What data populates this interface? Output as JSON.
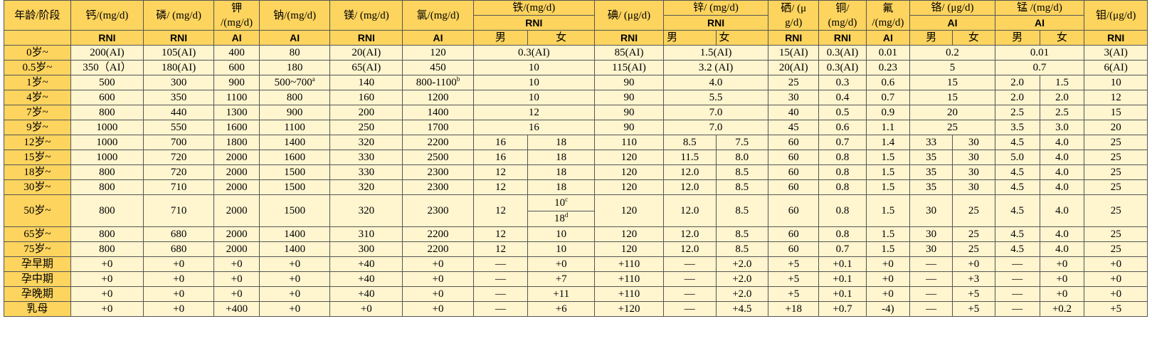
{
  "header": {
    "age": "年龄/阶段",
    "ca": "钙/(mg/d)",
    "p": "磷/ (mg/d)",
    "k_1": "钾",
    "k_2": "/(mg/d)",
    "na": "钠/(mg/d)",
    "mg": "镁/ (mg/d)",
    "cl": "氯/(mg/d)",
    "fe": "铁/(mg/d)",
    "fe_type": "RNI",
    "fe_m": "男",
    "fe_f": "女",
    "i": "碘/ (μg/d)",
    "zn": "锌/ (mg/d)",
    "zn_type": "RNI",
    "zn_m": "男",
    "zn_f": "女",
    "se_1": "硒/ (μ",
    "se_2": "g/d)",
    "cu_1": "铜/",
    "cu_2": "(mg/d)",
    "f_1": "氟",
    "f_2": "/(mg/d)",
    "cr": "铬/ (μg/d)",
    "cr_type": "AI",
    "cr_m": "男",
    "cr_f": "女",
    "mn": "锰 /(mg/d)",
    "mn_type": "AI",
    "mn_m": "男",
    "mn_f": "女",
    "mo": "钼/(μg/d)",
    "t_ca": "RNI",
    "t_p": "RNI",
    "t_k": "AI",
    "t_na": "AI",
    "t_mg": "RNI",
    "t_cl": "AI",
    "t_i": "RNI",
    "t_se": "RNI",
    "t_cu": "RNI",
    "t_f": "AI",
    "t_mo": "RNI"
  },
  "rows": {
    "r0": {
      "age": "0岁~",
      "ca": "200(AI)",
      "p": "105(AI)",
      "k": "400",
      "na": "80",
      "mg": "20(AI)",
      "cl": "120",
      "fe": "0.3(AI)",
      "i": "85(AI)",
      "zn": "1.5(AI)",
      "se": "15(AI)",
      "cu": "0.3(AI)",
      "f": "0.01",
      "cr": "0.2",
      "mn": "0.01",
      "mo": "3(AI)"
    },
    "r1": {
      "age": "0.5岁~",
      "ca": "350（AI）",
      "p": "180(AI)",
      "k": "600",
      "na": "180",
      "mg": "65(AI)",
      "cl": "450",
      "fe": "10",
      "i": "115(AI)",
      "zn": "3.2 (AI)",
      "se": "20(AI)",
      "cu": "0.3(AI)",
      "f": "0.23",
      "cr": "5",
      "mn": "0.7",
      "mo": "6(AI)"
    },
    "r2": {
      "age": "1岁~",
      "ca": "500",
      "p": "300",
      "k": "900",
      "na": "500~700",
      "na_sup": "a",
      "mg": "140",
      "cl": "800-1100",
      "cl_sup": "b",
      "fe": "10",
      "i": "90",
      "zn": "4.0",
      "se": "25",
      "cu": "0.3",
      "f": "0.6",
      "cr": "15",
      "mn_m": "2.0",
      "mn_f": "1.5",
      "mo": "10"
    },
    "r3": {
      "age": "4岁~",
      "ca": "600",
      "p": "350",
      "k": "1100",
      "na": "800",
      "mg": "160",
      "cl": "1200",
      "fe": "10",
      "i": "90",
      "zn": "5.5",
      "se": "30",
      "cu": "0.4",
      "f": "0.7",
      "cr": "15",
      "mn_m": "2.0",
      "mn_f": "2.0",
      "mo": "12"
    },
    "r4": {
      "age": "7岁~",
      "ca": "800",
      "p": "440",
      "k": "1300",
      "na": "900",
      "mg": "200",
      "cl": "1400",
      "fe": "12",
      "i": "90",
      "zn": "7.0",
      "se": "40",
      "cu": "0.5",
      "f": "0.9",
      "cr": "20",
      "mn_m": "2.5",
      "mn_f": "2.5",
      "mo": "15"
    },
    "r5": {
      "age": "9岁~",
      "ca": "1000",
      "p": "550",
      "k": "1600",
      "na": "1100",
      "mg": "250",
      "cl": "1700",
      "fe": "16",
      "i": "90",
      "zn": "7.0",
      "se": "45",
      "cu": "0.6",
      "f": "1.1",
      "cr": "25",
      "mn_m": "3.5",
      "mn_f": "3.0",
      "mo": "20"
    },
    "r6": {
      "age": "12岁~",
      "ca": "1000",
      "p": "700",
      "k": "1800",
      "na": "1400",
      "mg": "320",
      "cl": "2200",
      "fe_m": "16",
      "fe_f": "18",
      "i": "110",
      "zn_m": "8.5",
      "zn_f": "7.5",
      "se": "60",
      "cu": "0.7",
      "f": "1.4",
      "cr_m": "33",
      "cr_f": "30",
      "mn_m": "4.5",
      "mn_f": "4.0",
      "mo": "25"
    },
    "r7": {
      "age": "15岁~",
      "ca": "1000",
      "p": "720",
      "k": "2000",
      "na": "1600",
      "mg": "330",
      "cl": "2500",
      "fe_m": "16",
      "fe_f": "18",
      "i": "120",
      "zn_m": "11.5",
      "zn_f": "8.0",
      "se": "60",
      "cu": "0.8",
      "f": "1.5",
      "cr_m": "35",
      "cr_f": "30",
      "mn_m": "5.0",
      "mn_f": "4.0",
      "mo": "25"
    },
    "r8": {
      "age": "18岁~",
      "ca": "800",
      "p": "720",
      "k": "2000",
      "na": "1500",
      "mg": "330",
      "cl": "2300",
      "fe_m": "12",
      "fe_f": "18",
      "i": "120",
      "zn_m": "12.0",
      "zn_f": "8.5",
      "se": "60",
      "cu": "0.8",
      "f": "1.5",
      "cr_m": "35",
      "cr_f": "30",
      "mn_m": "4.5",
      "mn_f": "4.0",
      "mo": "25"
    },
    "r9": {
      "age": "30岁~",
      "ca": "800",
      "p": "710",
      "k": "2000",
      "na": "1500",
      "mg": "320",
      "cl": "2300",
      "fe_m": "12",
      "fe_f": "18",
      "i": "120",
      "zn_m": "12.0",
      "zn_f": "8.5",
      "se": "60",
      "cu": "0.8",
      "f": "1.5",
      "cr_m": "35",
      "cr_f": "30",
      "mn_m": "4.5",
      "mn_f": "4.0",
      "mo": "25"
    },
    "r10": {
      "age": "50岁~",
      "ca": "800",
      "p": "710",
      "k": "2000",
      "na": "1500",
      "mg": "320",
      "cl": "2300",
      "fe_m": "12",
      "fe_f1": "10",
      "fe_f1_sup": "c",
      "fe_f2": "18",
      "fe_f2_sup": "d",
      "i": "120",
      "zn_m": "12.0",
      "zn_f": "8.5",
      "se": "60",
      "cu": "0.8",
      "f": "1.5",
      "cr_m": "30",
      "cr_f": "25",
      "mn_m": "4.5",
      "mn_f": "4.0",
      "mo": "25"
    },
    "r11": {
      "age": "65岁~",
      "ca": "800",
      "p": "680",
      "k": "2000",
      "na": "1400",
      "mg": "310",
      "cl": "2200",
      "fe_m": "12",
      "fe_f": "10",
      "i": "120",
      "zn_m": "12.0",
      "zn_f": "8.5",
      "se": "60",
      "cu": "0.8",
      "f": "1.5",
      "cr_m": "30",
      "cr_f": "25",
      "mn_m": "4.5",
      "mn_f": "4.0",
      "mo": "25"
    },
    "r12": {
      "age": "75岁~",
      "ca": "800",
      "p": "680",
      "k": "2000",
      "na": "1400",
      "mg": "300",
      "cl": "2200",
      "fe_m": "12",
      "fe_f": "10",
      "i": "120",
      "zn_m": "12.0",
      "zn_f": "8.5",
      "se": "60",
      "cu": "0.7",
      "f": "1.5",
      "cr_m": "30",
      "cr_f": "25",
      "mn_m": "4.5",
      "mn_f": "4.0",
      "mo": "25"
    },
    "r13": {
      "age": "孕早期",
      "ca": "+0",
      "p": "+0",
      "k": "+0",
      "na": "+0",
      "mg": "+40",
      "cl": "+0",
      "fe_m": "—",
      "fe_f": "+0",
      "i": "+110",
      "zn_m": "—",
      "zn_f": "+2.0",
      "se": "+5",
      "cu": "+0.1",
      "f": "+0",
      "cr_m": "—",
      "cr_f": "+0",
      "mn_m": "—",
      "mn_f": "+0",
      "mo": "+0"
    },
    "r14": {
      "age": "孕中期",
      "ca": "+0",
      "p": "+0",
      "k": "+0",
      "na": "+0",
      "mg": "+40",
      "cl": "+0",
      "fe_m": "—",
      "fe_f": "+7",
      "i": "+110",
      "zn_m": "—",
      "zn_f": "+2.0",
      "se": "+5",
      "cu": "+0.1",
      "f": "+0",
      "cr_m": "—",
      "cr_f": "+3",
      "mn_m": "—",
      "mn_f": "+0",
      "mo": "+0"
    },
    "r15": {
      "age": "孕晚期",
      "ca": "+0",
      "p": "+0",
      "k": "+0",
      "na": "+0",
      "mg": "+40",
      "cl": "+0",
      "fe_m": "—",
      "fe_f": "+11",
      "i": "+110",
      "zn_m": "—",
      "zn_f": "+2.0",
      "se": "+5",
      "cu": "+0.1",
      "f": "+0",
      "cr_m": "—",
      "cr_f": "+5",
      "mn_m": "—",
      "mn_f": "+0",
      "mo": "+0"
    },
    "r16": {
      "age": "乳母",
      "ca": "+0",
      "p": "+0",
      "k": "+400",
      "na": "+0",
      "mg": "+0",
      "cl": "+0",
      "fe_m": "—",
      "fe_f": "+6",
      "i": "+120",
      "zn_m": "—",
      "zn_f": "+4.5",
      "se": "+18",
      "cu": "+0.7",
      "f": "-4)",
      "cr_m": "—",
      "cr_f": "+5",
      "mn_m": "—",
      "mn_f": "+0.2",
      "mo": "+5"
    }
  }
}
